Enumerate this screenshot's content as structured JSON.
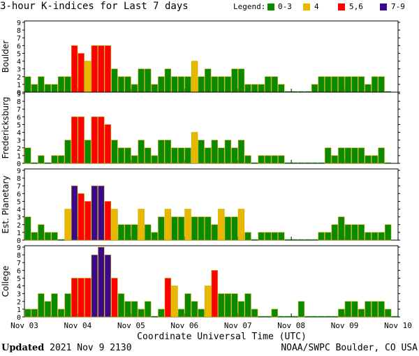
{
  "title": "3-hour K-indices for Last 7 days",
  "legend": {
    "label": "Legend:",
    "items": [
      {
        "label": "0-3",
        "color": "#0a8a00"
      },
      {
        "label": "4",
        "color": "#e8b800"
      },
      {
        "label": "5,6",
        "color": "#ff0000"
      },
      {
        "label": "7-9",
        "color": "#3a0a8a"
      }
    ]
  },
  "footer": {
    "updated_label": "Updated",
    "updated_value": "2021 Nov  9 2130",
    "credit": "NOAA/SWPC Boulder, CO USA"
  },
  "chart_data": {
    "type": "bar",
    "xlabel": "Coordinate Universal Time (UTC)",
    "x_ticks": [
      "Nov 03",
      "Nov 04",
      "Nov 05",
      "Nov 06",
      "Nov 07",
      "Nov 08",
      "Nov 09",
      "Nov 10"
    ],
    "ylim": [
      0,
      9
    ],
    "y_ticks": [
      0,
      1,
      2,
      3,
      4,
      5,
      6,
      7,
      8,
      9
    ],
    "grid": false,
    "bars_per_day": 8,
    "panels": [
      {
        "name": "Boulder",
        "values": [
          2,
          1,
          2,
          1,
          1,
          2,
          2,
          6,
          5,
          4,
          6,
          6,
          6,
          3,
          2,
          2,
          1,
          3,
          3,
          1,
          2,
          3,
          2,
          2,
          2,
          4,
          2,
          3,
          2,
          2,
          2,
          3,
          3,
          1,
          1,
          1,
          2,
          2,
          1,
          0,
          0,
          0,
          0,
          1,
          2,
          2,
          2,
          2,
          2,
          2,
          2,
          1,
          2,
          2,
          0
        ]
      },
      {
        "name": "Fredericksburg",
        "values": [
          2,
          0,
          1,
          0,
          1,
          1,
          3,
          6,
          6,
          3,
          6,
          6,
          5,
          3,
          2,
          2,
          1,
          3,
          2,
          1,
          3,
          3,
          2,
          2,
          2,
          4,
          3,
          2,
          3,
          2,
          3,
          2,
          3,
          1,
          0,
          1,
          1,
          1,
          1,
          0,
          0,
          0,
          0,
          0,
          0,
          2,
          1,
          2,
          2,
          2,
          2,
          1,
          1,
          2,
          0
        ]
      },
      {
        "name": "Est. Planetary",
        "values": [
          3,
          1,
          2,
          1,
          1,
          0,
          4,
          7,
          6,
          5,
          7,
          7,
          5,
          4,
          2,
          2,
          2,
          4,
          2,
          1,
          3,
          4,
          3,
          3,
          4,
          3,
          3,
          3,
          2,
          4,
          3,
          3,
          4,
          1,
          0,
          1,
          1,
          1,
          1,
          0,
          0,
          0,
          0,
          0,
          1,
          1,
          2,
          3,
          2,
          2,
          2,
          1,
          1,
          1,
          2
        ]
      },
      {
        "name": "College",
        "values": [
          1,
          1,
          3,
          2,
          3,
          1,
          3,
          5,
          5,
          5,
          8,
          9,
          8,
          5,
          3,
          2,
          2,
          1,
          2,
          0,
          1,
          5,
          4,
          1,
          3,
          2,
          1,
          4,
          6,
          3,
          3,
          3,
          2,
          3,
          1,
          0,
          0,
          1,
          0,
          0,
          0,
          2,
          0,
          0,
          0,
          0,
          0,
          1,
          2,
          2,
          1,
          2,
          2,
          2,
          1,
          0
        ]
      }
    ]
  }
}
